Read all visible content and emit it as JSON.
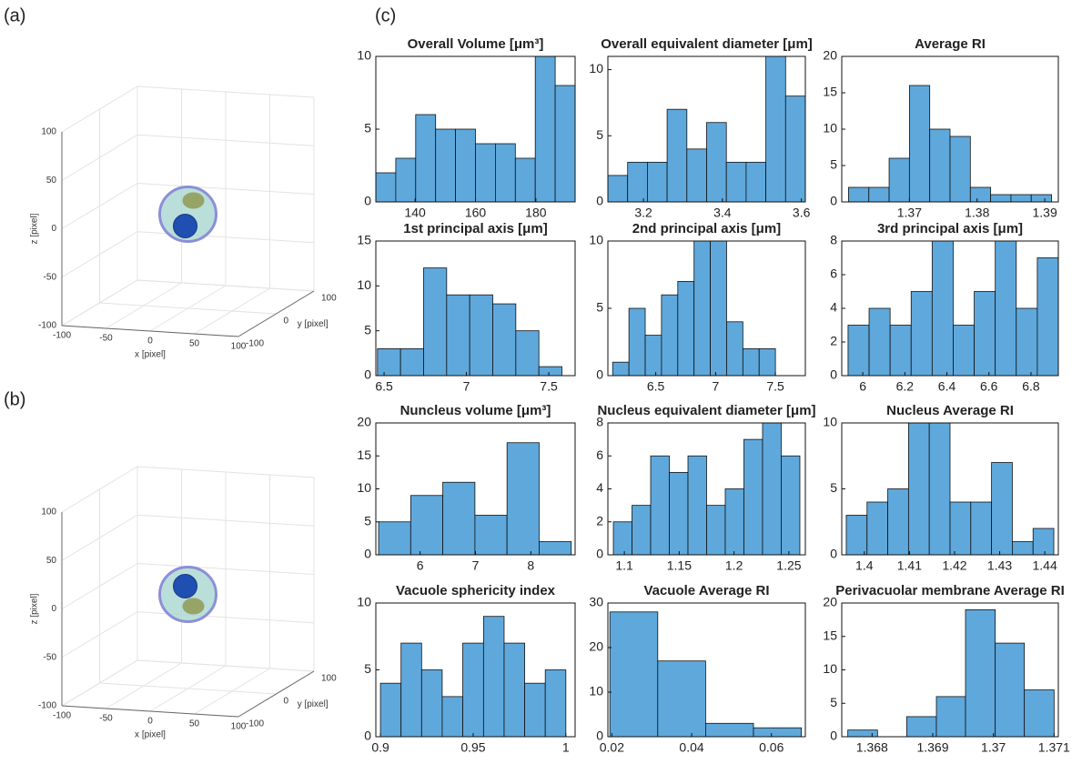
{
  "panel_labels": [
    "(a)",
    "(b)",
    "(c)"
  ],
  "chart_data": [
    {
      "type": "histogram",
      "title": "Overall Volume [μm³]",
      "bins": [
        127,
        133.6,
        140.2,
        146.8,
        153.4,
        160,
        166.6,
        173.2,
        179.8,
        186.4,
        193
      ],
      "counts": [
        2,
        3,
        6,
        5,
        5,
        4,
        4,
        3,
        10,
        8
      ],
      "color": "#5fa8dc",
      "xlim": [
        127,
        193
      ],
      "ylim": [
        0,
        10
      ],
      "xticks": [
        140,
        160,
        180
      ],
      "yticks": [
        0,
        5,
        10
      ]
    },
    {
      "type": "histogram",
      "title": "Overall equivalent diameter [μm]",
      "bins": [
        3.11,
        3.16,
        3.21,
        3.26,
        3.31,
        3.36,
        3.41,
        3.46,
        3.51,
        3.56,
        3.61
      ],
      "counts": [
        2,
        3,
        3,
        7,
        4,
        6,
        3,
        3,
        11,
        8
      ],
      "color": "#5fa8dc",
      "xlim": [
        3.11,
        3.61
      ],
      "ylim": [
        0,
        11
      ],
      "xticks": [
        3.2,
        3.4,
        3.6
      ],
      "yticks": [
        0,
        5,
        10
      ]
    },
    {
      "type": "histogram",
      "title": "Average RI",
      "bins": [
        1.361,
        1.364,
        1.367,
        1.37,
        1.373,
        1.376,
        1.379,
        1.382,
        1.385,
        1.388,
        1.391
      ],
      "counts": [
        2,
        2,
        6,
        16,
        10,
        9,
        2,
        1,
        1,
        1
      ],
      "color": "#5fa8dc",
      "xlim": [
        1.36,
        1.392
      ],
      "ylim": [
        0,
        20
      ],
      "xticks": [
        1.37,
        1.38,
        1.39
      ],
      "yticks": [
        0,
        5,
        10,
        15,
        20
      ]
    },
    {
      "type": "histogram",
      "title": "1st principal axis [μm]",
      "bins": [
        6.46,
        6.6,
        6.74,
        6.88,
        7.02,
        7.16,
        7.3,
        7.44,
        7.58
      ],
      "counts": [
        3,
        3,
        12,
        9,
        9,
        8,
        5,
        1
      ],
      "color": "#5fa8dc",
      "xlim": [
        6.45,
        7.66
      ],
      "ylim": [
        0,
        15
      ],
      "xticks": [
        6.5,
        7,
        7.5
      ],
      "yticks": [
        0,
        5,
        10,
        15
      ]
    },
    {
      "type": "histogram",
      "title": "2nd principal axis [μm]",
      "bins": [
        6.14,
        6.276,
        6.412,
        6.548,
        6.684,
        6.82,
        6.956,
        7.092,
        7.228,
        7.364,
        7.5
      ],
      "counts": [
        1,
        5,
        3,
        6,
        7,
        10,
        10,
        4,
        2,
        2
      ],
      "color": "#5fa8dc",
      "xlim": [
        6.1,
        7.75
      ],
      "ylim": [
        0,
        10
      ],
      "xticks": [
        6.5,
        7,
        7.5
      ],
      "yticks": [
        0,
        5,
        10
      ]
    },
    {
      "type": "histogram",
      "title": "3rd principal axis [μm]",
      "bins": [
        5.93,
        6.03,
        6.13,
        6.23,
        6.33,
        6.43,
        6.53,
        6.63,
        6.73,
        6.83,
        6.93
      ],
      "counts": [
        3,
        4,
        3,
        5,
        8,
        3,
        5,
        8,
        4,
        7
      ],
      "color": "#5fa8dc",
      "xlim": [
        5.9,
        6.93
      ],
      "ylim": [
        0,
        8
      ],
      "xticks": [
        6,
        6.2,
        6.4,
        6.6,
        6.8
      ],
      "yticks": [
        0,
        2,
        4,
        6,
        8
      ]
    },
    {
      "type": "histogram",
      "title": "Nuncleus volume [μm³]",
      "bins": [
        5.25,
        5.83,
        6.41,
        6.99,
        7.57,
        8.15,
        8.73
      ],
      "counts": [
        5,
        9,
        11,
        6,
        17,
        2
      ],
      "color": "#5fa8dc",
      "xlim": [
        5.2,
        8.8
      ],
      "ylim": [
        0,
        20
      ],
      "xticks": [
        6,
        7,
        8
      ],
      "yticks": [
        0,
        5,
        10,
        15,
        20
      ]
    },
    {
      "type": "histogram",
      "title": "Nucleus equivalent diameter [μm]",
      "bins": [
        1.09,
        1.107,
        1.124,
        1.141,
        1.158,
        1.175,
        1.192,
        1.209,
        1.226,
        1.243,
        1.26
      ],
      "counts": [
        2,
        3,
        6,
        5,
        6,
        3,
        4,
        7,
        8,
        6
      ],
      "color": "#5fa8dc",
      "xlim": [
        1.085,
        1.265
      ],
      "ylim": [
        0,
        8
      ],
      "xticks": [
        1.1,
        1.15,
        1.2,
        1.25
      ],
      "yticks": [
        0,
        2,
        4,
        6,
        8
      ]
    },
    {
      "type": "histogram",
      "title": "Nucleus Average RI",
      "bins": [
        1.396,
        1.4006,
        1.4052,
        1.4098,
        1.4144,
        1.419,
        1.4236,
        1.4282,
        1.4328,
        1.4374,
        1.442
      ],
      "counts": [
        3,
        4,
        5,
        10,
        10,
        4,
        4,
        7,
        1,
        2
      ],
      "color": "#5fa8dc",
      "xlim": [
        1.395,
        1.443
      ],
      "ylim": [
        0,
        10
      ],
      "xticks": [
        1.4,
        1.41,
        1.42,
        1.43,
        1.44
      ],
      "yticks": [
        0,
        5,
        10
      ]
    },
    {
      "type": "histogram",
      "title": "Vacuole sphericity index",
      "bins": [
        0.9,
        0.9111,
        0.9222,
        0.9333,
        0.9444,
        0.9556,
        0.9667,
        0.9778,
        0.9889,
        1
      ],
      "counts": [
        4,
        7,
        5,
        3,
        7,
        9,
        7,
        4,
        5
      ],
      "color": "#5fa8dc",
      "xlim": [
        0.8975,
        1.005
      ],
      "ylim": [
        0,
        10
      ],
      "xticks": [
        0.9,
        0.95,
        1
      ],
      "yticks": [
        0,
        5,
        10
      ]
    },
    {
      "type": "histogram",
      "title": "Vacuole Average RI",
      "bins": [
        0.0195,
        0.0315,
        0.0435,
        0.0555,
        0.0675
      ],
      "counts": [
        28,
        17,
        3,
        2
      ],
      "color": "#5fa8dc",
      "xlim": [
        0.019,
        0.0685
      ],
      "ylim": [
        0,
        30
      ],
      "xticks": [
        0.02,
        0.04,
        0.06
      ],
      "yticks": [
        0,
        10,
        20,
        30
      ]
    },
    {
      "type": "histogram",
      "title": "Perivacuolar membrane Average RI",
      "bins": [
        1.3676,
        1.36809,
        1.36857,
        1.36906,
        1.36954,
        1.37003,
        1.37051,
        1.371
      ],
      "counts": [
        1,
        0,
        3,
        6,
        19,
        14,
        7
      ],
      "color": "#5fa8dc",
      "xlim": [
        1.3675,
        1.37107
      ],
      "ylim": [
        0,
        20
      ],
      "xticks": [
        1.368,
        1.369,
        1.37,
        1.371
      ],
      "yticks": [
        0,
        5,
        10,
        15,
        20
      ]
    },
    {
      "type": "scatter3d",
      "xlabel": "x [pixel]",
      "ylabel": "y [pixel]",
      "zlabel": "z [pixel]",
      "xlim": [
        -100,
        100
      ],
      "ylim": [
        -100,
        100
      ],
      "zlim": [
        -100,
        100
      ],
      "xticks": [
        -100,
        -50,
        0,
        50,
        100
      ],
      "yticks": [
        -100,
        0,
        100
      ],
      "zticks": [
        -100,
        -50,
        0,
        50,
        100
      ],
      "order": "vacuole-top"
    },
    {
      "type": "scatter3d",
      "xlabel": "x [pixel]",
      "ylabel": "y [pixel]",
      "zlabel": "z [pixel]",
      "xlim": [
        -100,
        100
      ],
      "ylim": [
        -100,
        100
      ],
      "zlim": [
        -100,
        100
      ],
      "xticks": [
        -100,
        -50,
        0,
        50,
        100
      ],
      "yticks": [
        -100,
        0,
        100
      ],
      "zticks": [
        -100,
        -50,
        0,
        50,
        100
      ],
      "order": "nucleus-top"
    }
  ]
}
